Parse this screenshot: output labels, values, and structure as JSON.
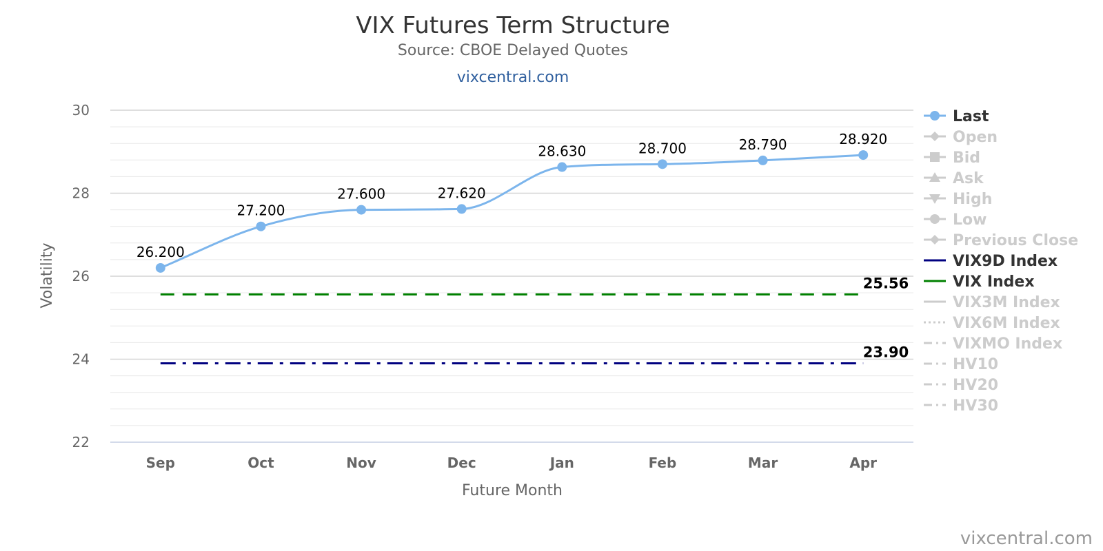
{
  "chart_data": {
    "type": "line",
    "title": "VIX Futures Term Structure",
    "subtitle": "Source: CBOE Delayed Quotes",
    "site_link": "vixcentral.com",
    "credit": "vixcentral.com",
    "xlabel": "Future Month",
    "ylabel": "Volatility",
    "ylim": [
      22,
      30
    ],
    "y_ticks": [
      "22",
      "24",
      "26",
      "28",
      "30"
    ],
    "categories": [
      "Sep",
      "Oct",
      "Nov",
      "Dec",
      "Jan",
      "Feb",
      "Mar",
      "Apr"
    ],
    "grid": true,
    "legend_position": "right",
    "series": [
      {
        "name": "Last",
        "values": [
          26.2,
          27.2,
          27.6,
          27.62,
          28.63,
          28.7,
          28.79,
          28.92
        ],
        "labels": [
          "26.200",
          "27.200",
          "27.600",
          "27.620",
          "28.630",
          "28.700",
          "28.790",
          "28.920"
        ],
        "color": "#7cb5ec"
      },
      {
        "name": "VIX Index",
        "value": 25.56,
        "end_label": "25.56",
        "color": "#008000"
      },
      {
        "name": "VIX9D Index",
        "value": 23.9,
        "end_label": "23.90",
        "color": "#000080"
      }
    ],
    "legend": [
      {
        "name": "Last",
        "icon": "circle-marker",
        "active": true,
        "color": "#7cb5ec"
      },
      {
        "name": "Open",
        "icon": "diamond-marker",
        "active": false,
        "color": "#cccccc"
      },
      {
        "name": "Bid",
        "icon": "square-marker",
        "active": false,
        "color": "#cccccc"
      },
      {
        "name": "Ask",
        "icon": "triangle-up-marker",
        "active": false,
        "color": "#cccccc"
      },
      {
        "name": "High",
        "icon": "triangle-down-marker",
        "active": false,
        "color": "#cccccc"
      },
      {
        "name": "Low",
        "icon": "circle-marker",
        "active": false,
        "color": "#cccccc"
      },
      {
        "name": "Previous Close",
        "icon": "diamond-marker",
        "active": false,
        "color": "#cccccc"
      },
      {
        "name": "VIX9D Index",
        "icon": "solid-line",
        "active": true,
        "color": "#000080"
      },
      {
        "name": "VIX Index",
        "icon": "solid-line",
        "active": true,
        "color": "#008000"
      },
      {
        "name": "VIX3M Index",
        "icon": "solid-line",
        "active": false,
        "color": "#cccccc"
      },
      {
        "name": "VIX6M Index",
        "icon": "dotted-line",
        "active": false,
        "color": "#cccccc"
      },
      {
        "name": "VIXMO Index",
        "icon": "dash-dot-line",
        "active": false,
        "color": "#cccccc"
      },
      {
        "name": "HV10",
        "icon": "dash-dot-line",
        "active": false,
        "color": "#cccccc"
      },
      {
        "name": "HV20",
        "icon": "dash-dot-line",
        "active": false,
        "color": "#cccccc"
      },
      {
        "name": "HV30",
        "icon": "dash-dot-line",
        "active": false,
        "color": "#cccccc"
      }
    ]
  }
}
